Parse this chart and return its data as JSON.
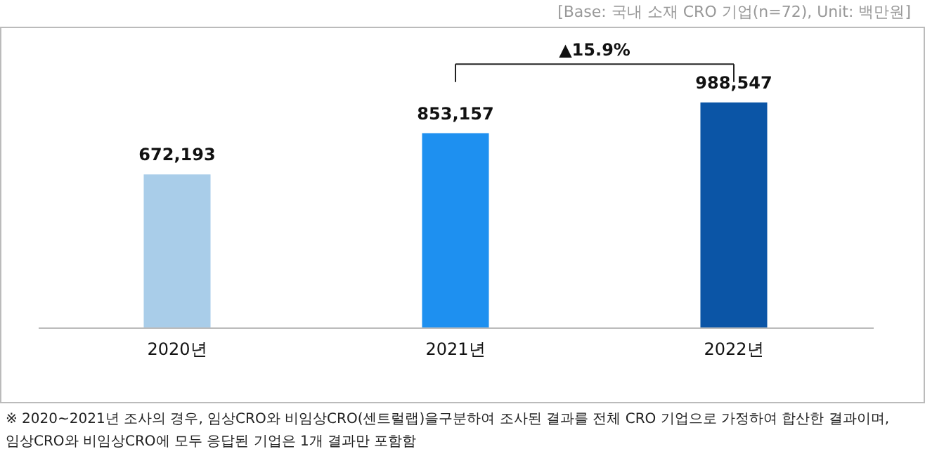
{
  "chart_data": {
    "type": "bar",
    "categories": [
      "2020년",
      "2021년",
      "2022년"
    ],
    "values": [
      672193,
      853157,
      988547
    ],
    "colors": [
      "#a9cde9",
      "#1e90f0",
      "#0b55a6"
    ],
    "value_labels": [
      "672,193",
      "853,157",
      "988,547"
    ],
    "tick_labels": "x",
    "annotations": [
      "[Base: 국내 소재 CRO 기업(n=72), Unit: 백만원]",
      "▲15.9%",
      "※ 2020~2021년 조사의 경우, 임상CRO와 비임상CRO(센트럴랩)을구분하여 조사된 결과를 전체 CRO 기업으로 가정하여 합산한 결과이며, 임상CRO와 비임상CRO에 모두 응답된 기업은 1개 결과만 포함함"
    ]
  }
}
